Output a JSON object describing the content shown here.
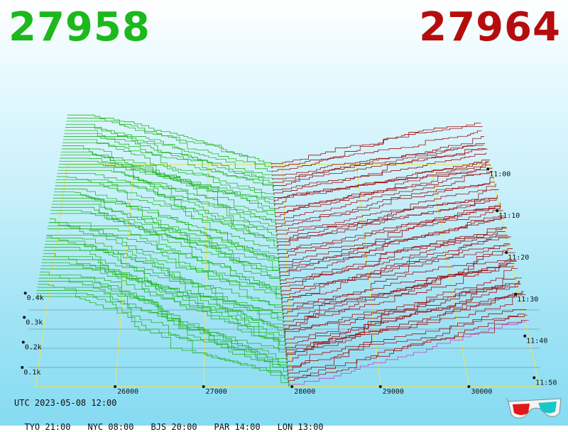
{
  "header": {
    "bid_price": "27958",
    "ask_price": "27964",
    "bid_color": "#1cb81c",
    "ask_color": "#b50d0d"
  },
  "footer": {
    "utc": "UTC 2023-05-08 12:00",
    "zones": [
      "TYO 21:00",
      "NYC 08:00",
      "BJS 20:00",
      "PAR 14:00",
      "LON 13:00"
    ]
  },
  "glasses_icon": "3d-glasses-icon",
  "chart_data": {
    "type": "area",
    "subtype": "3d-depth-of-market",
    "x_axis": {
      "ticks": [
        26000,
        27000,
        28000,
        29000,
        30000
      ],
      "range": [
        25100,
        30800
      ]
    },
    "z_axis": {
      "ticks": [
        "0.1k",
        "0.2k",
        "0.3k",
        "0.4k"
      ],
      "values": [
        100,
        200,
        300,
        400
      ]
    },
    "time_axis": {
      "ticks": [
        "11:00",
        "11:10",
        "11:20",
        "11:30",
        "11:40",
        "11:50"
      ]
    },
    "bid_color": "#22b822",
    "ask_color": "#a01010",
    "latest_ask_color": "#cc44cc",
    "mid_price_start": 27850,
    "mid_price_end": 27960,
    "snapshots": 60,
    "grid": true
  }
}
